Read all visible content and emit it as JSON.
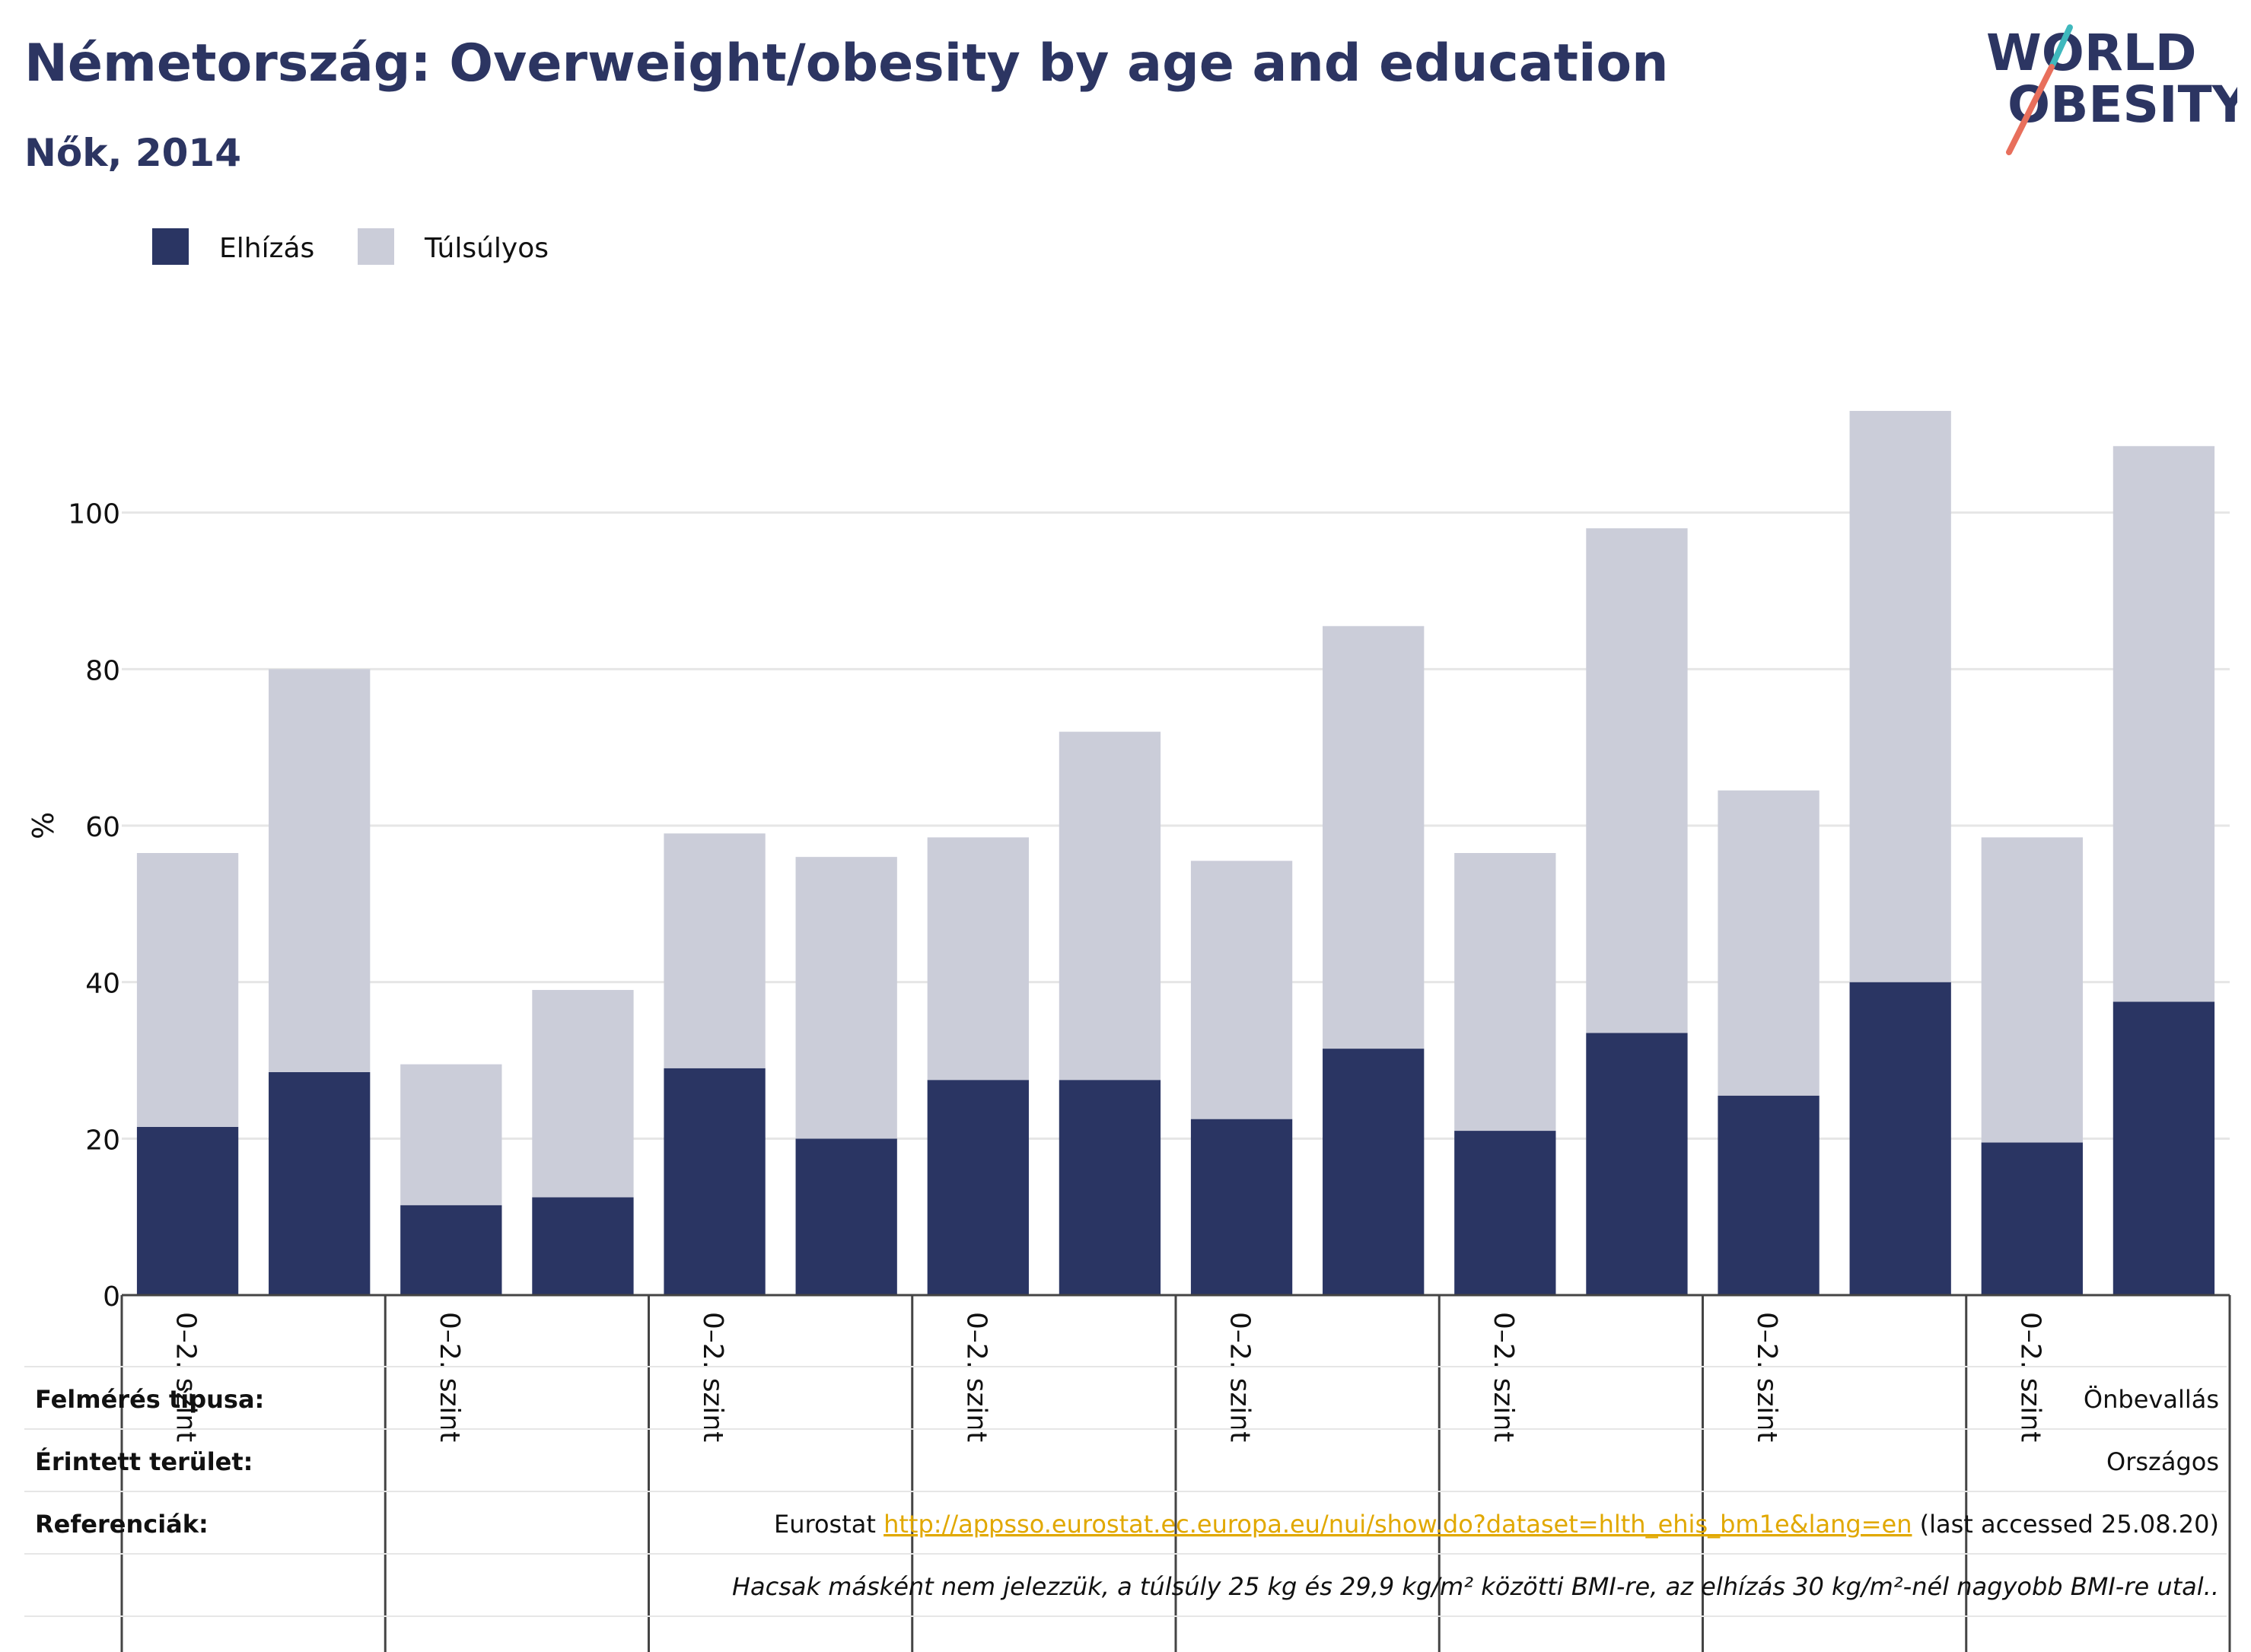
{
  "header": {
    "title": "Németország: Overweight/obesity by age and education",
    "subtitle": "Nők, 2014"
  },
  "logo": {
    "line1": "WORLD",
    "line2": "OBESITY"
  },
  "legend": [
    {
      "label": "Elhízás",
      "color": "#2a3563"
    },
    {
      "label": "Túlsúlyos",
      "color": "#cbcdd9"
    }
  ],
  "colors": {
    "obesity": "#2a3563",
    "overweight": "#cbcdd9",
    "link": "#e1a800",
    "logo_teal": "#3fb8bd",
    "logo_coral": "#e86f5c"
  },
  "chart_data": {
    "type": "bar",
    "stacked": true,
    "ylabel": "%",
    "ylim": [
      0,
      113
    ],
    "yticks": [
      0,
      20,
      40,
      60,
      80,
      100
    ],
    "grid": true,
    "legend_position": "top-left",
    "category_label": "0–2. szint",
    "series": [
      {
        "name": "Elhízás",
        "values": [
          21.5,
          28.5,
          11.5,
          12.5,
          29,
          20,
          27.5,
          27.5,
          22.5,
          31.5,
          21,
          33.5,
          25.5,
          40,
          19.5,
          37.5
        ]
      },
      {
        "name": "Túlsúlyos",
        "values": [
          35,
          51.5,
          18,
          26.5,
          30,
          36,
          31,
          44.5,
          33,
          54,
          35.5,
          64.5,
          39,
          73,
          39,
          71
        ]
      }
    ]
  },
  "footer": {
    "rows": [
      {
        "label": "Felmérés típusa:",
        "value": "Önbevallás"
      },
      {
        "label": "Érintett terület:",
        "value": "Országos"
      },
      {
        "label": "Referenciák:",
        "value_prefix": "Eurostat ",
        "link": "http://appsso.eurostat.ec.europa.eu/nui/show.do?dataset=hlth_ehis_bm1e&lang=en",
        "value_suffix": " (last accessed 25.08.20)"
      }
    ],
    "note": "Hacsak másként nem jelezzük, a túlsúly 25 kg és 29,9 kg/m² közötti BMI-re, az elhízás 30 kg/m²-nél nagyobb BMI-re utal.."
  }
}
